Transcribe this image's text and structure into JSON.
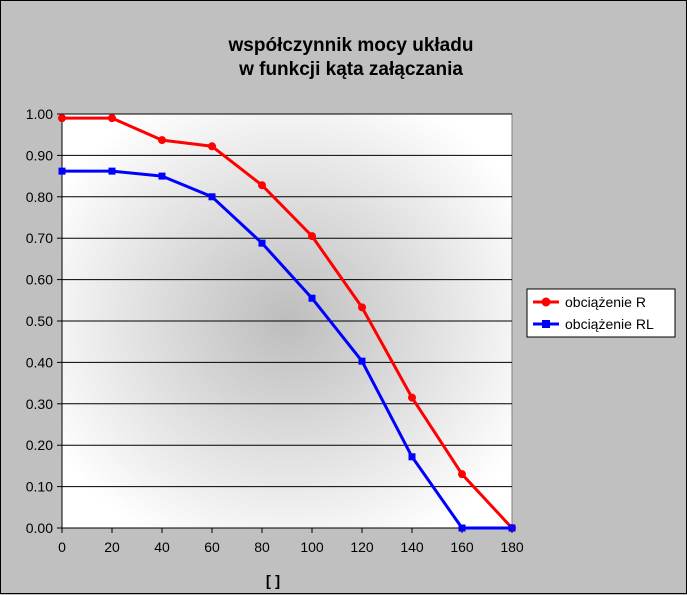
{
  "chart_data": {
    "type": "line",
    "title": [
      "współczynnik mocy układu",
      "w funkcji kąta załączania"
    ],
    "xlabel": "[ ]",
    "ylabel": "",
    "x": [
      0,
      20,
      40,
      60,
      80,
      100,
      120,
      140,
      160,
      180
    ],
    "xlim": [
      0,
      180
    ],
    "ylim": [
      0,
      1
    ],
    "xticks": [
      "0",
      "20",
      "40",
      "60",
      "80",
      "100",
      "120",
      "140",
      "160",
      "180"
    ],
    "yticks": [
      "0.00",
      "0.10",
      "0.20",
      "0.30",
      "0.40",
      "0.50",
      "0.60",
      "0.70",
      "0.80",
      "0.90",
      "1.00"
    ],
    "grid": "horizontal",
    "legend_position": "right",
    "series": [
      {
        "name": "obciążenie R",
        "color": "#ff0000",
        "marker": "circle",
        "values": [
          0.99,
          0.99,
          0.937,
          0.922,
          0.828,
          0.705,
          0.533,
          0.315,
          0.13,
          0.0
        ]
      },
      {
        "name": "obciążenie RL",
        "color": "#0000ff",
        "marker": "square",
        "values": [
          0.862,
          0.862,
          0.85,
          0.8,
          0.688,
          0.555,
          0.403,
          0.172,
          0.0,
          0.0
        ]
      }
    ]
  }
}
